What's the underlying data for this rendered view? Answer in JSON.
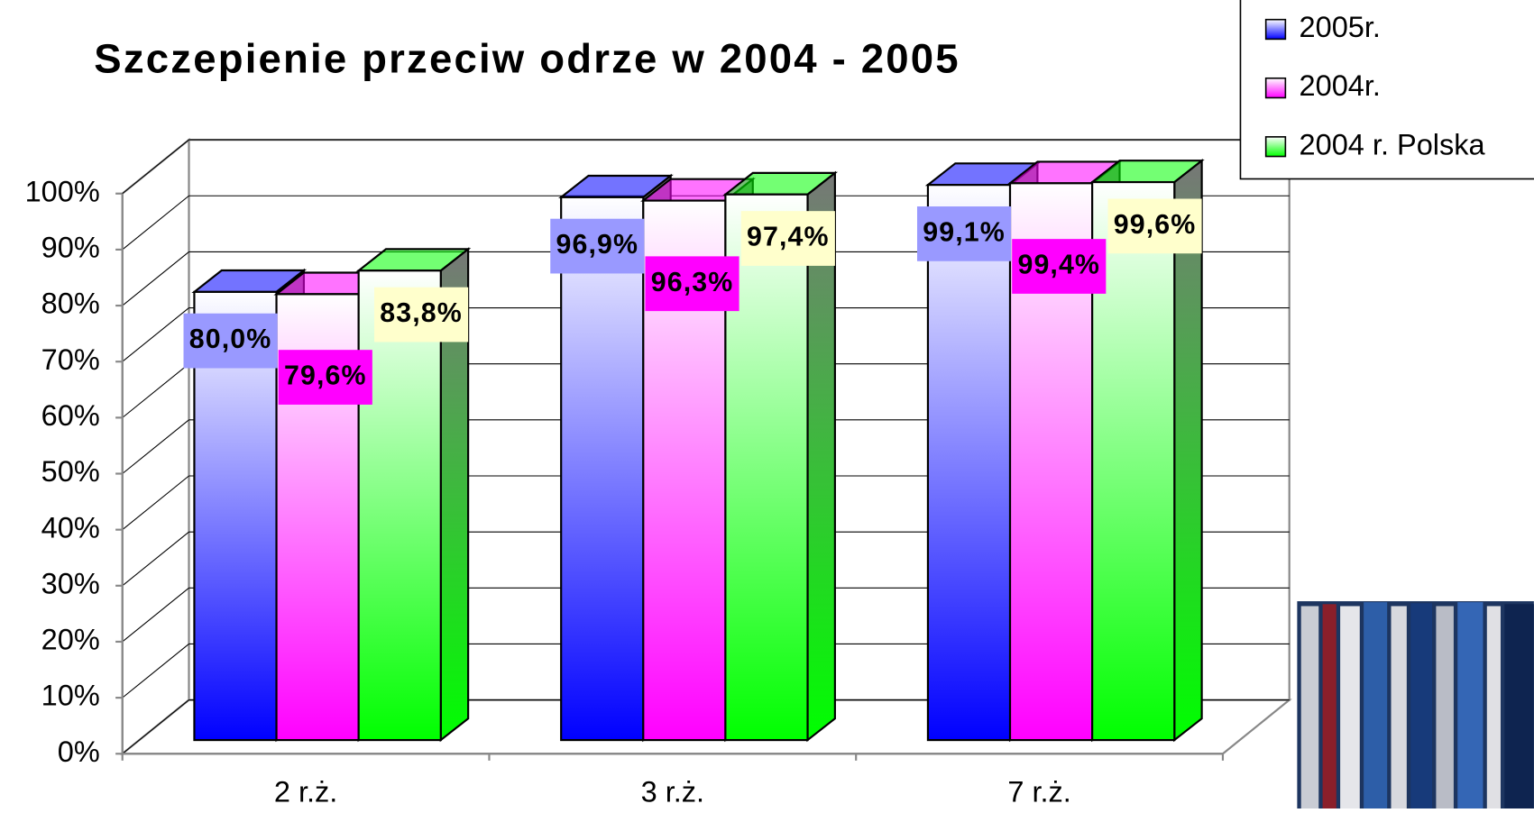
{
  "chart_data": {
    "type": "bar3d",
    "title": "Szczepienie przeciw odrze w 2004 - 2005",
    "categories": [
      "2 r.ż.",
      "3 r.ż.",
      "7 r.ż."
    ],
    "series": [
      {
        "name": "2005r.",
        "color": "#0000ff",
        "label_color": "#9999ff",
        "values": [
          80.0,
          96.9,
          99.1
        ],
        "value_labels": [
          "80,0%",
          "96,9%",
          "99,1%"
        ]
      },
      {
        "name": "2004r.",
        "color": "#ff00ff",
        "label_color": "#ff00ff",
        "values": [
          79.6,
          96.3,
          99.4
        ],
        "value_labels": [
          "79,6%",
          "96,3%",
          "99,4%"
        ]
      },
      {
        "name": "2004 r. Polska",
        "color": "#00ff00",
        "label_color": "#ffffcc",
        "values": [
          83.8,
          97.4,
          99.6
        ],
        "value_labels": [
          "83,8%",
          "97,4%",
          "99,6%"
        ]
      }
    ],
    "ylim": [
      0,
      100
    ],
    "yticks": [
      {
        "value": 0,
        "label": "0%"
      },
      {
        "value": 10,
        "label": "10%"
      },
      {
        "value": 20,
        "label": "20%"
      },
      {
        "value": 30,
        "label": "30%"
      },
      {
        "value": 40,
        "label": "40%"
      },
      {
        "value": 50,
        "label": "50%"
      },
      {
        "value": 60,
        "label": "60%"
      },
      {
        "value": 70,
        "label": "70%"
      },
      {
        "value": 80,
        "label": "80%"
      },
      {
        "value": 90,
        "label": "90%"
      },
      {
        "value": 100,
        "label": "100%"
      }
    ],
    "grid": true,
    "legend": "top-right"
  }
}
